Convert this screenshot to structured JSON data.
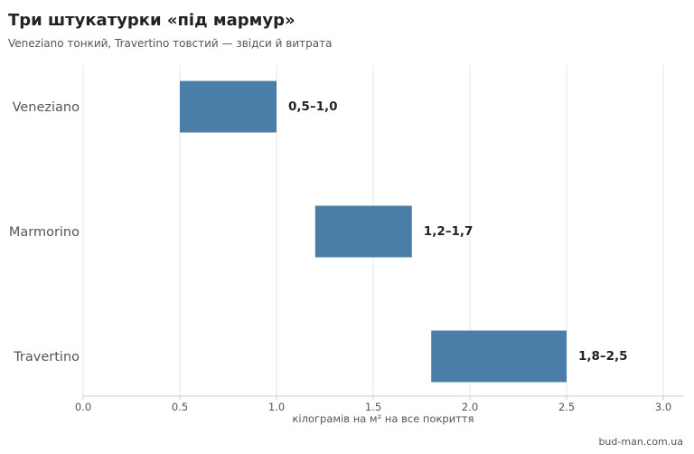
{
  "header": {
    "title": "Три штукатурки «під мармур»",
    "subtitle": "Veneziano тонкий, Travertino товстий — звідси й витрата"
  },
  "footer": {
    "source": "bud-man.com.ua"
  },
  "chart_data": {
    "type": "bar",
    "orientation": "horizontal",
    "bar_style": "range",
    "categories": [
      "Veneziano",
      "Marmorino",
      "Travertino"
    ],
    "ranges": [
      [
        0.5,
        1.0
      ],
      [
        1.2,
        1.7
      ],
      [
        1.8,
        2.5
      ]
    ],
    "data_labels": [
      "0,5–1,0",
      "1,2–1,7",
      "1,8–2,5"
    ],
    "xlabel": "кілограмів на м² на все покриття",
    "ylabel": "",
    "xlim": [
      0,
      3.1
    ],
    "xticks": [
      0,
      0.5,
      1,
      1.5,
      2,
      2.5,
      3
    ],
    "xtick_labels": [
      "0.0",
      "0.5",
      "1.0",
      "1.5",
      "2.0",
      "2.5",
      "3.0"
    ],
    "grid": "vertical",
    "bar_color": "#4a7ea8",
    "grid_color": "#e6e6e6",
    "axis_color": "#cccccc"
  }
}
